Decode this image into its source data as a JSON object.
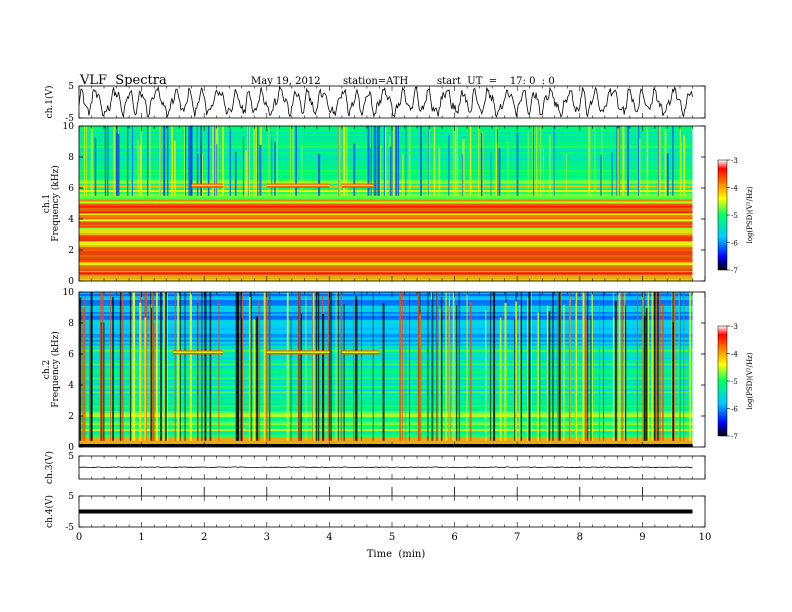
{
  "header": {
    "title": "VLF  Spectra",
    "date": "May 19, 2012",
    "station": "station=ATH",
    "start_ut": "start  UT  =    17: 0  : 0"
  },
  "chart_data": [
    {
      "type": "line",
      "panel": "ch.1 waveform",
      "ylabel": "ch.1(V)",
      "ylim": [
        -5,
        5
      ],
      "yticks": [
        "5",
        "-5"
      ],
      "x_unit": "min",
      "description_values": {
        "x_range": [
          0,
          9.8
        ],
        "amplitude_range": [
          -4.5,
          4.5
        ]
      }
    },
    {
      "type": "heatmap",
      "panel": "ch.1 spectrogram",
      "ylabel_lines": [
        "ch.1",
        "Frequency  (kHz)"
      ],
      "ylim": [
        0,
        10
      ],
      "yticks": [
        "0",
        "2",
        "4",
        "6",
        "8",
        "10"
      ],
      "colorbar": {
        "label": "log(PSD)(V²/Hz)",
        "range": [
          -7,
          -3
        ],
        "ticks": [
          "-3",
          "-4",
          "-5",
          "-6",
          "-7"
        ]
      },
      "bands": [
        {
          "f": 0.5,
          "level": -3.4
        },
        {
          "f": 1.3,
          "level": -3.6
        },
        {
          "f": 2.0,
          "level": -3.7
        },
        {
          "f": 2.8,
          "level": -3.5
        },
        {
          "f": 3.5,
          "level": -3.6
        },
        {
          "f": 4.2,
          "level": -3.8
        },
        {
          "f": 4.8,
          "level": -3.4
        },
        {
          "f": 5.8,
          "level": -4.3
        },
        {
          "f": 6.1,
          "level": -4.1
        }
      ],
      "tone_segments": [
        {
          "x0": 1.8,
          "x1": 2.3,
          "f": 6.15
        },
        {
          "x0": 3.0,
          "x1": 4.0,
          "f": 6.15
        },
        {
          "x0": 4.2,
          "x1": 4.7,
          "f": 6.15
        }
      ]
    },
    {
      "type": "heatmap",
      "panel": "ch.2 spectrogram",
      "ylabel_lines": [
        "ch.2",
        "Frequency  (kHz)"
      ],
      "ylim": [
        0,
        10
      ],
      "yticks": [
        "0",
        "2",
        "4",
        "6",
        "8",
        "10"
      ],
      "colorbar": {
        "label": "log(PSD)(V²/Hz)",
        "range": [
          -7,
          -3
        ],
        "ticks": [
          "-3",
          "-4",
          "-5",
          "-6",
          "-7"
        ]
      },
      "tone_segments": [
        {
          "x0": 1.5,
          "x1": 2.3,
          "f": 6.1
        },
        {
          "x0": 3.0,
          "x1": 4.0,
          "f": 6.1
        },
        {
          "x0": 4.2,
          "x1": 4.8,
          "f": 6.1
        }
      ]
    },
    {
      "type": "line",
      "panel": "ch.3 waveform",
      "ylabel": "ch.3(V)",
      "ylim": [
        -5,
        5
      ],
      "yticks": [
        "5"
      ],
      "level": 0.1
    },
    {
      "type": "line",
      "panel": "ch.4 waveform",
      "ylabel": "ch.4(V)",
      "ylim": [
        -5,
        5
      ],
      "yticks": [
        "5",
        "-5"
      ],
      "level": 0.0
    }
  ],
  "xaxis": {
    "label": "Time  (min)",
    "ticks": [
      "0",
      "1",
      "2",
      "3",
      "4",
      "5",
      "6",
      "7",
      "8",
      "9",
      "10"
    ],
    "range": [
      0,
      10
    ],
    "data_end": 9.8
  },
  "colors": {
    "colormap": [
      "#000000",
      "#0000ff",
      "#00ccff",
      "#00ff66",
      "#ffff00",
      "#ff8800",
      "#ff0000",
      "#ffffff"
    ]
  }
}
